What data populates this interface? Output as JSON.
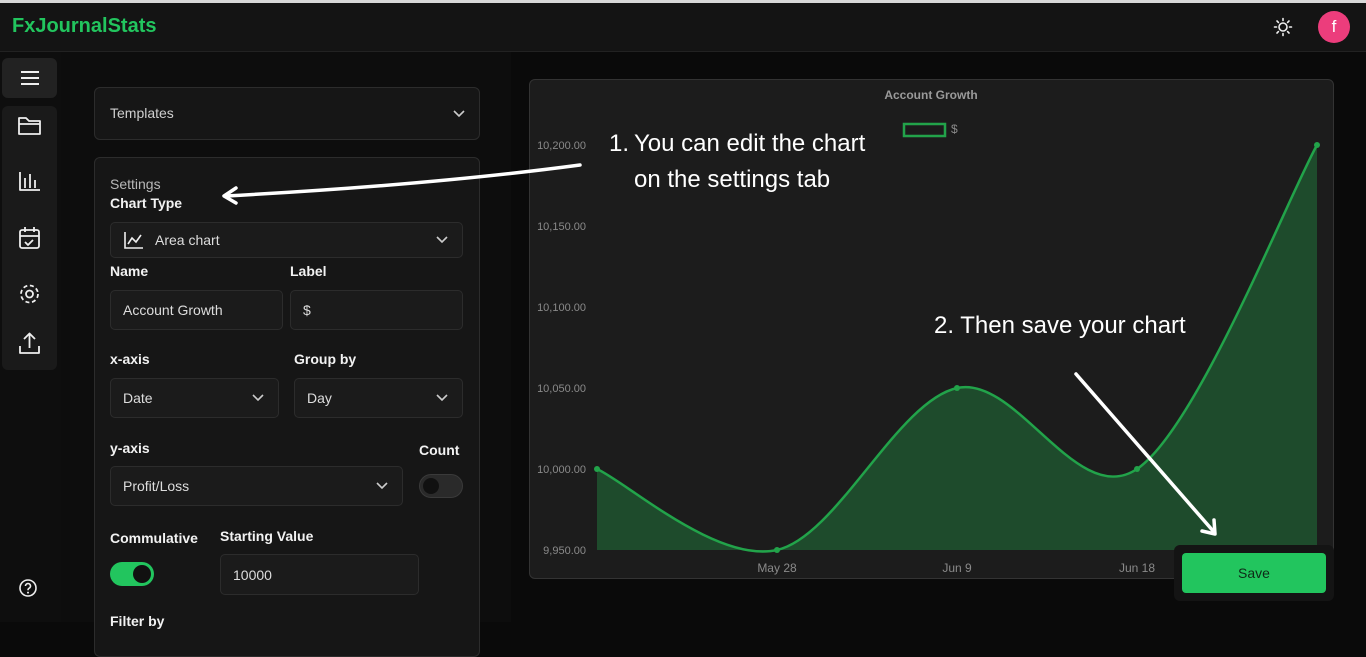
{
  "header": {
    "brand": "FxJournalStats",
    "avatar": "f"
  },
  "templates": {
    "title": "Templates"
  },
  "settings": {
    "title": "Settings",
    "chart_type_label": "Chart Type",
    "chart_type": "Area chart",
    "name_label": "Name",
    "name": "Account Growth",
    "label_label": "Label",
    "label": "$",
    "x_axis_label": "x-axis",
    "x_axis": "Date",
    "group_by_label": "Group by",
    "group_by": "Day",
    "y_axis_label": "y-axis",
    "y_axis": "Profit/Loss",
    "count_label": "Count",
    "cumulative_label": "Commulative",
    "starting_value_label": "Starting Value",
    "starting_value": "10000",
    "filter_label": "Filter by"
  },
  "annotations": [
    {
      "number": "1.",
      "lines": [
        "You can edit the chart",
        "on the settings tab"
      ]
    },
    {
      "text": "2. Then save your chart"
    }
  ],
  "save_button": "Save",
  "chart_data": {
    "type": "area",
    "title": "Account Growth",
    "categories": [
      null,
      "May 28",
      "Jun 9",
      "Jun 18",
      null
    ],
    "series": [
      {
        "name": "$",
        "color": "#22a34a",
        "values": [
          10000,
          9950,
          10050,
          10000,
          10200
        ]
      }
    ],
    "ylim": [
      9950,
      10200
    ],
    "yticks": [
      {
        "value": 9950,
        "label": "9,950.00"
      },
      {
        "value": 10000,
        "label": "10,000.00"
      },
      {
        "value": 10050,
        "label": "10,050.00"
      },
      {
        "value": 10100,
        "label": "10,100.00"
      },
      {
        "value": 10150,
        "label": "10,150.00"
      },
      {
        "value": 10200,
        "label": "10,200.00"
      }
    ],
    "grid": false
  }
}
